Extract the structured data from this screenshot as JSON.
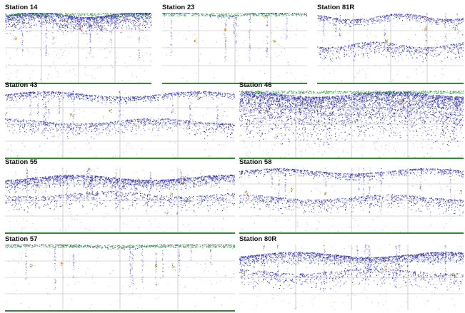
{
  "panels": [
    {
      "id": "s14",
      "label": "Station 14",
      "bottom_row_style": "surface-dense"
    },
    {
      "id": "s23",
      "label": "Station 23",
      "bottom_row_style": "sparse"
    },
    {
      "id": "s81r",
      "label": "Station 81R",
      "bottom_row_style": "layered"
    },
    {
      "id": "s43",
      "label": "Station 43",
      "bottom_row_style": "layered"
    },
    {
      "id": "s46",
      "label": "Station 46",
      "bottom_row_style": "dense"
    },
    {
      "id": "s55",
      "label": "Station 55",
      "bottom_row_style": "band"
    },
    {
      "id": "s58",
      "label": "Station 58",
      "bottom_row_style": "layered"
    },
    {
      "id": "s57",
      "label": "Station 57",
      "bottom_row_style": "sparse"
    },
    {
      "id": "s80r",
      "label": "Station 80R",
      "bottom_row_style": "band"
    }
  ],
  "colors": {
    "echo_primary": "#2a2ab0",
    "echo_dark": "#1c1c8a",
    "echo_light": "#8f8fd6",
    "echo_green": "#2f9a3a",
    "echo_red": "#d83a1a",
    "echo_yellow": "#d8c020",
    "grid": "#b5b5b5",
    "baseline": "#2e8b2e"
  }
}
